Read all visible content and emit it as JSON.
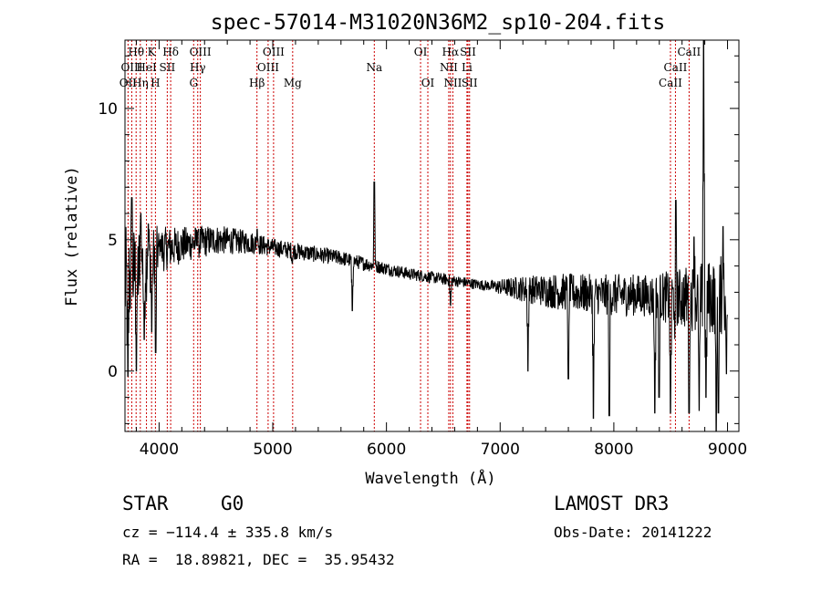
{
  "chart_data": {
    "type": "line",
    "title": "spec-57014-M31020N36M2_sp10-204.fits",
    "xlabel": "Wavelength (Å)",
    "ylabel": "Flux (relative)",
    "xlim": [
      3700,
      9100
    ],
    "ylim": [
      -2.3,
      12.6
    ],
    "xticks": [
      4000,
      5000,
      6000,
      7000,
      8000,
      9000
    ],
    "yticks": [
      0,
      5,
      10
    ],
    "xtick_labels": [
      "4000",
      "5000",
      "6000",
      "7000",
      "8000",
      "9000"
    ],
    "ytick_labels": [
      "0",
      "5",
      "10"
    ],
    "continuum": [
      [
        3700,
        3.3
      ],
      [
        3800,
        3.8
      ],
      [
        3900,
        4.2
      ],
      [
        4000,
        4.6
      ],
      [
        4200,
        4.8
      ],
      [
        4500,
        5.0
      ],
      [
        4800,
        4.9
      ],
      [
        5000,
        4.7
      ],
      [
        5300,
        4.5
      ],
      [
        5600,
        4.3
      ],
      [
        5900,
        4.0
      ],
      [
        6200,
        3.7
      ],
      [
        6500,
        3.5
      ],
      [
        6800,
        3.3
      ],
      [
        7000,
        3.2
      ],
      [
        7300,
        3.1
      ],
      [
        7600,
        3.0
      ],
      [
        7900,
        2.9
      ],
      [
        8200,
        2.9
      ],
      [
        8500,
        2.8
      ],
      [
        8800,
        2.8
      ],
      [
        9000,
        2.9
      ]
    ],
    "features": [
      [
        3725,
        -0.2
      ],
      [
        3760,
        6.6
      ],
      [
        3800,
        0.0
      ],
      [
        3840,
        6.0
      ],
      [
        3870,
        1.2
      ],
      [
        3905,
        5.6
      ],
      [
        3935,
        1.5
      ],
      [
        3970,
        0.7
      ],
      [
        4010,
        5.0
      ],
      [
        4340,
        5.3
      ],
      [
        4862,
        5.4
      ],
      [
        5172,
        4.1
      ],
      [
        5700,
        2.3
      ],
      [
        5893,
        7.2
      ],
      [
        6563,
        2.5
      ],
      [
        7245,
        0.0
      ],
      [
        7600,
        -0.3
      ],
      [
        7820,
        -1.8
      ],
      [
        7960,
        -1.7
      ],
      [
        8360,
        -1.6
      ],
      [
        8398,
        -1.0
      ],
      [
        8498,
        -1.6
      ],
      [
        8542,
        -1.6
      ],
      [
        8545,
        6.5
      ],
      [
        8662,
        -1.6
      ],
      [
        8705,
        5.1
      ],
      [
        8750,
        -1.5
      ],
      [
        8790,
        12.6
      ],
      [
        8810,
        -1.0
      ],
      [
        8900,
        -2.3
      ],
      [
        8920,
        -1.6
      ],
      [
        8960,
        5.5
      ],
      [
        8990,
        -0.1
      ]
    ],
    "noise_amplitude": [
      [
        3700,
        2.2
      ],
      [
        3800,
        1.8
      ],
      [
        3900,
        1.5
      ],
      [
        4000,
        0.9
      ],
      [
        4200,
        0.7
      ],
      [
        5000,
        0.35
      ],
      [
        6000,
        0.25
      ],
      [
        6900,
        0.2
      ],
      [
        7200,
        0.5
      ],
      [
        7500,
        0.7
      ],
      [
        8000,
        0.8
      ],
      [
        8300,
        0.8
      ],
      [
        8700,
        1.3
      ],
      [
        9000,
        1.6
      ]
    ],
    "spectral_lines": [
      {
        "label": "OII",
        "wavelength": 3727,
        "row": 2
      },
      {
        "label": "Hθ",
        "wavelength": 3798,
        "row": 0
      },
      {
        "label": "OIII",
        "wavelength": 3760,
        "row": 1
      },
      {
        "label": "Hη",
        "wavelength": 3835,
        "row": 2
      },
      {
        "label": "K",
        "wavelength": 3934,
        "row": 0
      },
      {
        "label": "HeI",
        "wavelength": 3889,
        "row": 1
      },
      {
        "label": "H",
        "wavelength": 3968,
        "row": 2
      },
      {
        "label": "SII",
        "wavelength": 4072,
        "row": 1
      },
      {
        "label": "Hδ",
        "wavelength": 4102,
        "row": 0
      },
      {
        "label": "OIII",
        "wavelength": 4363,
        "row": 0
      },
      {
        "label": "Hγ",
        "wavelength": 4340,
        "row": 1
      },
      {
        "label": "G",
        "wavelength": 4304,
        "row": 2
      },
      {
        "label": "Hβ",
        "wavelength": 4861,
        "row": 2
      },
      {
        "label": "OIII",
        "wavelength": 5007,
        "row": 0
      },
      {
        "label": "OIII",
        "wavelength": 4959,
        "row": 1
      },
      {
        "label": "Mg",
        "wavelength": 5175,
        "row": 2
      },
      {
        "label": "Na",
        "wavelength": 5893,
        "row": 1
      },
      {
        "label": "OI",
        "wavelength": 6300,
        "row": 0
      },
      {
        "label": "OI",
        "wavelength": 6364,
        "row": 2
      },
      {
        "label": "Hα",
        "wavelength": 6563,
        "row": 0
      },
      {
        "label": "NII",
        "wavelength": 6548,
        "row": 1
      },
      {
        "label": "NII",
        "wavelength": 6584,
        "row": 2
      },
      {
        "label": "SII",
        "wavelength": 6717,
        "row": 0
      },
      {
        "label": "Li",
        "wavelength": 6708,
        "row": 1
      },
      {
        "label": "SII",
        "wavelength": 6731,
        "row": 2
      },
      {
        "label": "CaII",
        "wavelength": 8662,
        "row": 0
      },
      {
        "label": "CaII",
        "wavelength": 8542,
        "row": 1
      },
      {
        "label": "CaII",
        "wavelength": 8498,
        "row": 2
      }
    ],
    "colors": {
      "spectrum": "#000000",
      "marker": "#cc0000",
      "frame": "#000000"
    }
  },
  "info": {
    "class_label": "STAR",
    "subclass_label": "G0",
    "survey": "LAMOST DR3",
    "cz": "cz = −114.4 ± 335.8 km/s",
    "obs_date": "Obs-Date: 20141222",
    "coords": "RA =  18.89821, DEC =  35.95432"
  }
}
